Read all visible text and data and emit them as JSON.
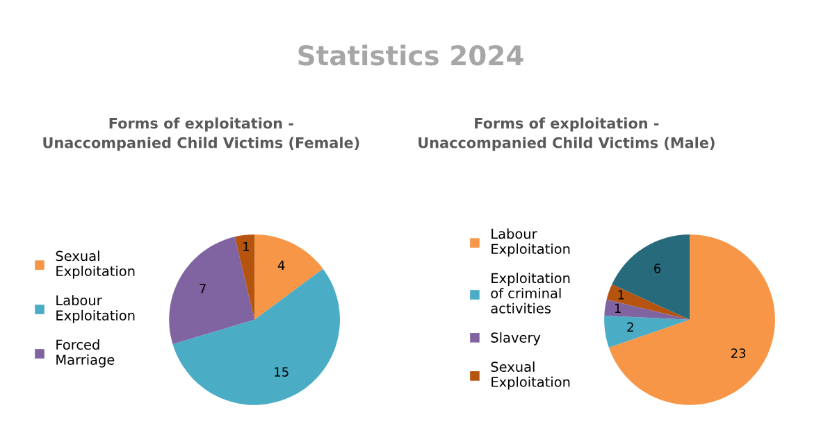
{
  "chart_data": [
    {
      "type": "other",
      "title": "Statistics 2024"
    },
    {
      "type": "pie",
      "title": "Forms of exploitation - Unaccompanied Child Victims (Female)",
      "categories": [
        "Sexual Exploitation",
        "Labour Exploitation",
        "Forced Marriage",
        null
      ],
      "values": [
        4,
        15,
        7,
        1
      ],
      "colors": [
        "#f79646",
        "#4bacc6",
        "#8064a2",
        "#b5540f"
      ],
      "data_labels": true,
      "legend": "left"
    },
    {
      "type": "pie",
      "title": "Forms of exploitation - Unaccompanied Child Victims (Male)",
      "categories": [
        "Labour Exploitation",
        "Exploitation of criminal activities",
        "Slavery",
        "Sexual Exploitation",
        null
      ],
      "values": [
        23,
        2,
        1,
        1,
        6
      ],
      "colors": [
        "#f79646",
        "#4bacc6",
        "#8064a2",
        "#b5540f",
        "#276a7c"
      ],
      "data_labels": true,
      "legend": "left"
    }
  ]
}
